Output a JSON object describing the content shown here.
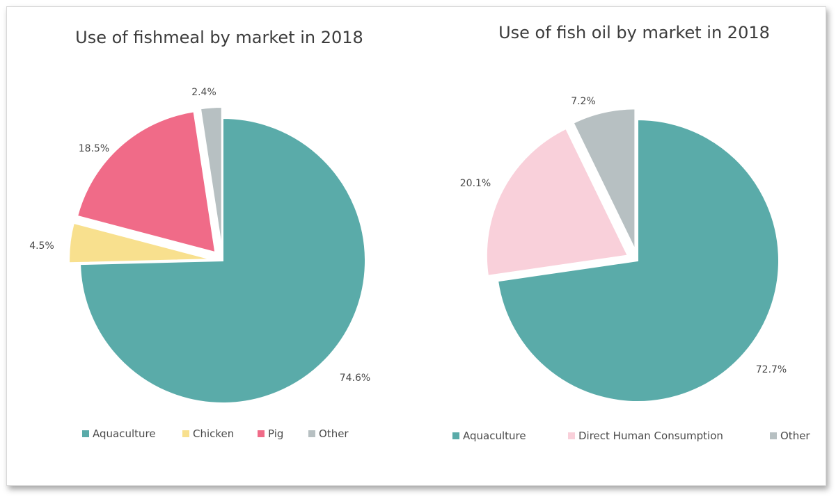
{
  "chart_data": [
    {
      "type": "pie",
      "title": "Use of fishmeal by market in 2018",
      "slices": [
        {
          "label": "Aquaculture",
          "value": 74.6,
          "display": "74.6%",
          "color": "#5aaba9",
          "exploded": false
        },
        {
          "label": "Chicken",
          "value": 4.5,
          "display": "4.5%",
          "color": "#f8e08e",
          "exploded": true
        },
        {
          "label": "Pig",
          "value": 18.5,
          "display": "18.5%",
          "color": "#f06b88",
          "exploded": true
        },
        {
          "label": "Other",
          "value": 2.4,
          "display": "2.4%",
          "color": "#b7c0c2",
          "exploded": true
        }
      ],
      "legend": [
        "Aquaculture",
        "Chicken",
        "Pig",
        "Other"
      ],
      "legend_position": "bottom"
    },
    {
      "type": "pie",
      "title": "Use of fish oil by market in 2018",
      "slices": [
        {
          "label": "Aquaculture",
          "value": 72.7,
          "display": "72.7%",
          "color": "#5aaba9",
          "exploded": false
        },
        {
          "label": "Direct Human Consumption",
          "value": 20.1,
          "display": "20.1%",
          "color": "#f9d0da",
          "exploded": true
        },
        {
          "label": "Other",
          "value": 7.2,
          "display": "7.2%",
          "color": "#b7c0c2",
          "exploded": true
        }
      ],
      "legend": [
        "Aquaculture",
        "Direct Human Consumption",
        "Other"
      ],
      "legend_position": "bottom"
    }
  ]
}
